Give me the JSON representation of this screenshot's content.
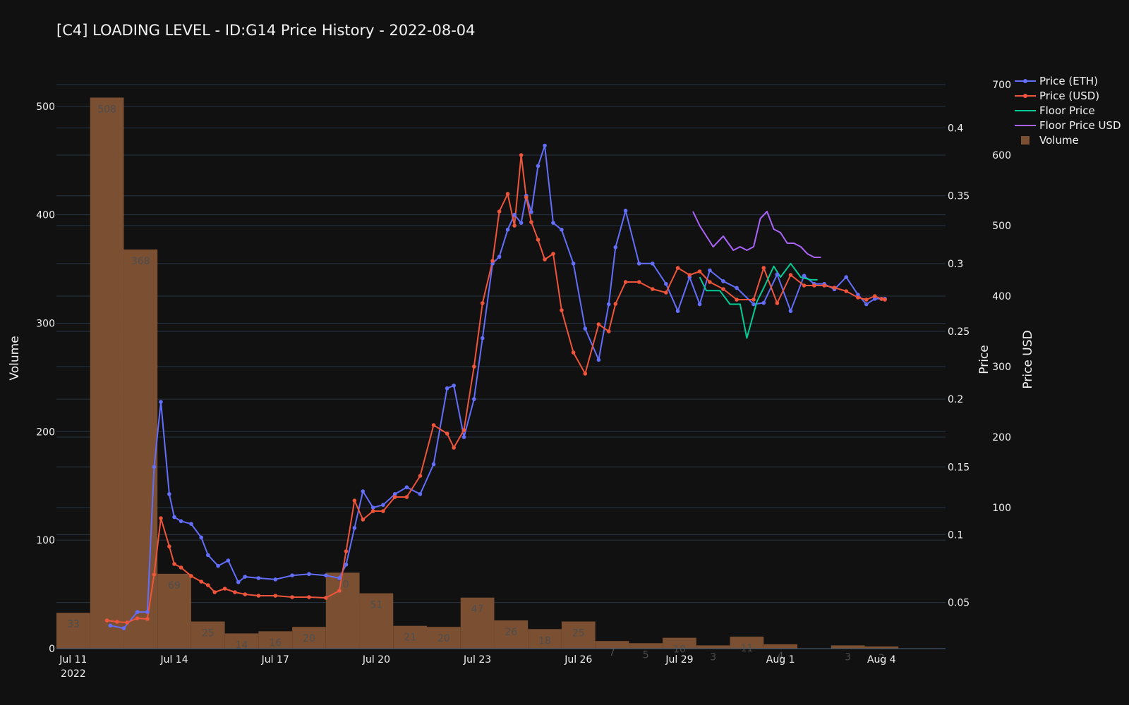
{
  "chart_data": {
    "type": "line",
    "title": "[C4] LOADING LEVEL - ID:G14 Price History - 2022-08-04",
    "x_axis": {
      "ticks": [
        "Jul 11",
        "Jul 14",
        "Jul 17",
        "Jul 20",
        "Jul 23",
        "Jul 26",
        "Jul 29",
        "Aug 1",
        "Aug 4"
      ],
      "year_label": "2022",
      "range_days": [
        -0.5,
        25.9
      ]
    },
    "y_axes": {
      "volume": {
        "label": "Volume",
        "ticks": [
          0,
          100,
          200,
          300,
          400,
          500
        ],
        "range": [
          0,
          520
        ]
      },
      "price": {
        "label": "Price",
        "ticks": [
          0.05,
          0.1,
          0.15,
          0.2,
          0.25,
          0.3,
          0.35,
          0.4
        ],
        "range": [
          0.016,
          0.432
        ]
      },
      "price_usd": {
        "label": "Price USD",
        "ticks": [
          100,
          200,
          300,
          400,
          500,
          600,
          700
        ],
        "range": [
          -100,
          700
        ]
      }
    },
    "legend": [
      "Price (ETH)",
      "Price (USD)",
      "Floor Price",
      "Floor Price USD",
      "Volume"
    ],
    "volume": {
      "days": [
        0,
        1,
        2,
        3,
        4,
        5,
        6,
        7,
        8,
        9,
        10,
        11,
        12,
        13,
        14,
        15,
        16,
        17,
        18,
        19,
        20,
        21,
        22,
        23,
        24
      ],
      "values": [
        33,
        508,
        368,
        69,
        25,
        14,
        16,
        20,
        70,
        51,
        21,
        20,
        47,
        26,
        18,
        25,
        7,
        5,
        10,
        3,
        11,
        4,
        0,
        3,
        2
      ],
      "labels": [
        "33",
        "508",
        "368",
        "69",
        "25",
        "14",
        "16",
        "20",
        "70",
        "51",
        "21",
        "20",
        "47",
        "26",
        "18",
        "25",
        "7",
        "5",
        "10",
        "3",
        "11",
        "4",
        "",
        "3",
        "2"
      ]
    },
    "series": [
      {
        "name": "Price (ETH)",
        "axis": "price",
        "markers": true,
        "x": [
          1.1,
          1.5,
          1.9,
          2.2,
          2.4,
          2.6,
          2.85,
          3.0,
          3.2,
          3.5,
          3.8,
          4.0,
          4.3,
          4.6,
          4.9,
          5.1,
          5.5,
          6.0,
          6.5,
          7.0,
          7.5,
          7.9,
          8.1,
          8.35,
          8.6,
          8.9,
          9.2,
          9.55,
          9.9,
          10.3,
          10.7,
          11.1,
          11.3,
          11.6,
          11.9,
          12.15,
          12.45,
          12.65,
          12.9,
          13.1,
          13.3,
          13.45,
          13.6,
          13.8,
          14.0,
          14.25,
          14.5,
          14.85,
          15.2,
          15.6,
          15.9,
          16.1,
          16.4,
          16.8,
          17.2,
          17.6,
          17.95,
          18.3,
          18.6,
          18.9,
          19.3,
          19.7,
          20.2,
          20.5,
          20.9,
          21.3,
          21.7,
          22.0,
          22.3,
          22.6,
          22.95,
          23.3,
          23.55,
          23.8,
          24.0,
          24.1
        ],
        "y": [
          0.033,
          0.031,
          0.043,
          0.043,
          0.15,
          0.198,
          0.13,
          0.113,
          0.11,
          0.108,
          0.098,
          0.085,
          0.077,
          0.081,
          0.065,
          0.069,
          0.068,
          0.067,
          0.07,
          0.071,
          0.07,
          0.068,
          0.078,
          0.105,
          0.132,
          0.12,
          0.122,
          0.13,
          0.135,
          0.13,
          0.152,
          0.208,
          0.21,
          0.172,
          0.2,
          0.245,
          0.3,
          0.305,
          0.325,
          0.336,
          0.33,
          0.35,
          0.338,
          0.372,
          0.387,
          0.33,
          0.325,
          0.3,
          0.252,
          0.229,
          0.27,
          0.312,
          0.339,
          0.3,
          0.3,
          0.285,
          0.265,
          0.29,
          0.27,
          0.295,
          0.287,
          0.282,
          0.27,
          0.271,
          0.292,
          0.265,
          0.291,
          0.285,
          0.285,
          0.281,
          0.29,
          0.277,
          0.27,
          0.274,
          0.274,
          0.274
        ]
      },
      {
        "name": "Price (USD)",
        "axis": "price_usd",
        "markers": true,
        "x": [
          1.0,
          1.3,
          1.6,
          1.9,
          2.2,
          2.4,
          2.6,
          2.85,
          3.0,
          3.2,
          3.5,
          3.8,
          4.0,
          4.2,
          4.5,
          4.8,
          5.1,
          5.5,
          6.0,
          6.5,
          7.0,
          7.5,
          7.9,
          8.1,
          8.35,
          8.6,
          8.9,
          9.2,
          9.55,
          9.9,
          10.3,
          10.7,
          11.1,
          11.3,
          11.6,
          11.9,
          12.15,
          12.45,
          12.65,
          12.9,
          13.1,
          13.3,
          13.45,
          13.6,
          13.8,
          14.0,
          14.25,
          14.5,
          14.85,
          15.2,
          15.6,
          15.9,
          16.1,
          16.4,
          16.8,
          17.2,
          17.6,
          17.95,
          18.3,
          18.6,
          18.9,
          19.3,
          19.7,
          20.2,
          20.5,
          20.9,
          21.3,
          21.7,
          22.0,
          22.3,
          22.6,
          22.95,
          23.3,
          23.55,
          23.8,
          24.0,
          24.1
        ],
        "y": [
          -60,
          -62,
          -63,
          -57,
          -58,
          5,
          85,
          45,
          20,
          15,
          3,
          -5,
          -10,
          -20,
          -15,
          -20,
          -23,
          -25,
          -25,
          -27,
          -27,
          -28,
          -18,
          38,
          110,
          83,
          95,
          95,
          115,
          115,
          145,
          217,
          205,
          185,
          210,
          300,
          390,
          450,
          520,
          545,
          500,
          600,
          540,
          505,
          480,
          452,
          460,
          380,
          320,
          290,
          360,
          350,
          389,
          420,
          420,
          410,
          405,
          440,
          430,
          435,
          420,
          410,
          395,
          395,
          440,
          390,
          430,
          415,
          415,
          415,
          412,
          407,
          398,
          395,
          400,
          396,
          395
        ]
      },
      {
        "name": "Floor Price",
        "axis": "price",
        "markers": false,
        "x": [
          18.6,
          18.8,
          19.2,
          19.5,
          19.8,
          20.0,
          20.3,
          20.5,
          20.8,
          21.0,
          21.3,
          21.6,
          21.9,
          22.1
        ],
        "y": [
          0.29,
          0.28,
          0.28,
          0.27,
          0.27,
          0.245,
          0.272,
          0.282,
          0.298,
          0.29,
          0.3,
          0.29,
          0.288,
          0.288
        ]
      },
      {
        "name": "Floor Price USD",
        "axis": "price_usd",
        "markers": false,
        "x": [
          18.4,
          18.6,
          18.8,
          19.0,
          19.3,
          19.6,
          19.8,
          20.0,
          20.2,
          20.4,
          20.6,
          20.8,
          21.0,
          21.2,
          21.4,
          21.6,
          21.8,
          22.0,
          22.2
        ],
        "y": [
          520,
          500,
          485,
          470,
          485,
          465,
          470,
          465,
          470,
          510,
          520,
          495,
          490,
          475,
          475,
          470,
          460,
          455,
          455
        ]
      }
    ]
  },
  "colors": {
    "background": "#111111",
    "grid": "#283442",
    "text": "#f2f2f2",
    "price_eth": "#636efa",
    "price_usd": "#ef553b",
    "floor_price": "#00cc96",
    "floor_price_usd": "#ab63fa",
    "volume": "#7a4f32"
  }
}
